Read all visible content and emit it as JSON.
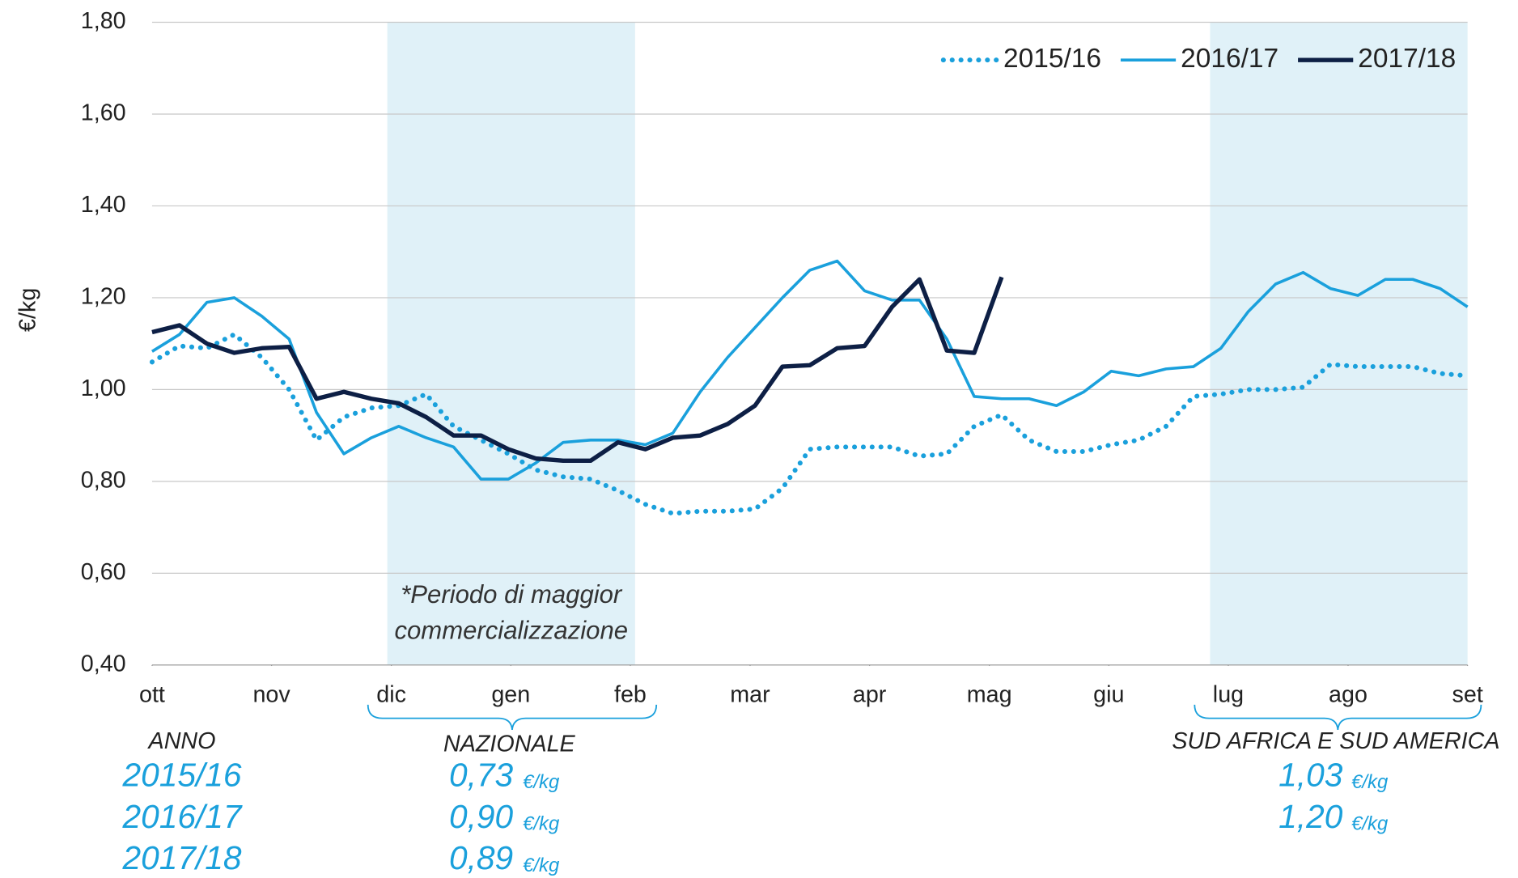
{
  "chart_data": {
    "type": "line",
    "y_label": "€/kg",
    "annotation": [
      "*Periodo di maggior",
      "commercializzazione"
    ],
    "x": [
      0,
      1,
      2,
      3,
      4,
      5,
      6,
      7,
      8,
      9,
      10,
      11,
      12,
      13,
      14,
      15,
      16,
      17,
      18,
      19,
      20,
      21,
      22,
      23,
      24,
      25,
      26,
      27,
      28,
      29,
      30,
      31,
      32,
      33,
      34,
      35,
      36,
      37,
      38,
      39,
      40,
      41,
      42,
      43,
      44,
      45,
      46,
      47,
      48
    ],
    "xlim": [
      0,
      48
    ],
    "xticks": [
      {
        "value": 0,
        "label": "ott"
      },
      {
        "value": 4.36,
        "label": "nov"
      },
      {
        "value": 8.73,
        "label": "dic"
      },
      {
        "value": 13.09,
        "label": "gen"
      },
      {
        "value": 17.45,
        "label": "feb"
      },
      {
        "value": 21.82,
        "label": "mar"
      },
      {
        "value": 26.18,
        "label": "apr"
      },
      {
        "value": 30.55,
        "label": "mag"
      },
      {
        "value": 34.91,
        "label": "giu"
      },
      {
        "value": 39.27,
        "label": "lug"
      },
      {
        "value": 43.64,
        "label": "ago"
      },
      {
        "value": 48,
        "label": "set"
      }
    ],
    "ylim": [
      0.4,
      1.8
    ],
    "yticks": [
      {
        "value": 0.4,
        "label": "0,40"
      },
      {
        "value": 0.6,
        "label": "0,60"
      },
      {
        "value": 0.8,
        "label": "0,80"
      },
      {
        "value": 1.0,
        "label": "1,00"
      },
      {
        "value": 1.2,
        "label": "1,20"
      },
      {
        "value": 1.4,
        "label": "1,40"
      },
      {
        "value": 1.6,
        "label": "1,60"
      },
      {
        "value": 1.8,
        "label": "1,80"
      }
    ],
    "grid": true,
    "legend": "top-right",
    "series": [
      {
        "name": "2015/16",
        "color": "#1aa0dc",
        "dash": "dotted",
        "values": [
          1.06,
          1.095,
          1.09,
          1.12,
          1.07,
          1.0,
          0.89,
          0.94,
          0.96,
          0.965,
          0.99,
          0.92,
          0.89,
          0.86,
          0.825,
          0.81,
          0.805,
          0.78,
          0.75,
          0.73,
          0.735,
          0.735,
          0.74,
          0.785,
          0.87,
          0.875,
          0.875,
          0.875,
          0.855,
          0.86,
          0.92,
          0.945,
          0.89,
          0.865,
          0.865,
          0.88,
          0.89,
          0.92,
          0.985,
          0.99,
          1.0,
          1.0,
          1.005,
          1.055,
          1.05,
          1.05,
          1.05,
          1.035,
          1.03
        ]
      },
      {
        "name": "2016/17",
        "color": "#1aa0dc",
        "dash": "solid",
        "values": [
          1.083,
          1.12,
          1.19,
          1.2,
          1.16,
          1.11,
          0.95,
          0.86,
          0.895,
          0.92,
          0.895,
          0.875,
          0.805,
          0.805,
          0.84,
          0.885,
          0.89,
          0.89,
          0.88,
          0.905,
          0.995,
          1.07,
          1.135,
          1.2,
          1.26,
          1.28,
          1.215,
          1.195,
          1.195,
          1.11,
          0.985,
          0.98,
          0.98,
          0.965,
          0.995,
          1.04,
          1.03,
          1.045,
          1.05,
          1.09,
          1.17,
          1.23,
          1.255,
          1.22,
          1.205,
          1.24,
          1.24,
          1.22,
          1.18
        ]
      },
      {
        "name": "2017/18",
        "color": "#0d1f45",
        "dash": "thick",
        "values": [
          1.125,
          1.14,
          1.1,
          1.08,
          1.09,
          1.093,
          0.98,
          0.995,
          0.98,
          0.97,
          0.94,
          0.9,
          0.9,
          0.87,
          0.85,
          0.845,
          0.845,
          0.885,
          0.87,
          0.895,
          0.9,
          0.925,
          0.965,
          1.05,
          1.053,
          1.09,
          1.095,
          1.18,
          1.24,
          1.085,
          1.08,
          1.245,
          null,
          null,
          null,
          null,
          null,
          null,
          null,
          null,
          null,
          null,
          null,
          null,
          null,
          null,
          null,
          null,
          null
        ]
      }
    ]
  },
  "summary": {
    "year_header": "ANNO",
    "national_header": "NAZIONALE",
    "import_header": "SUD AFRICA E SUD AMERICA",
    "rows": [
      {
        "year": "2015/16",
        "national": "0,73",
        "national_unit": "€/kg",
        "import": "1,03",
        "import_unit": "€/kg"
      },
      {
        "year": "2016/17",
        "national": "0,90",
        "national_unit": "€/kg",
        "import": "1,20",
        "import_unit": "€/kg"
      },
      {
        "year": "2017/18",
        "national": "0,89",
        "national_unit": "€/kg"
      }
    ]
  }
}
